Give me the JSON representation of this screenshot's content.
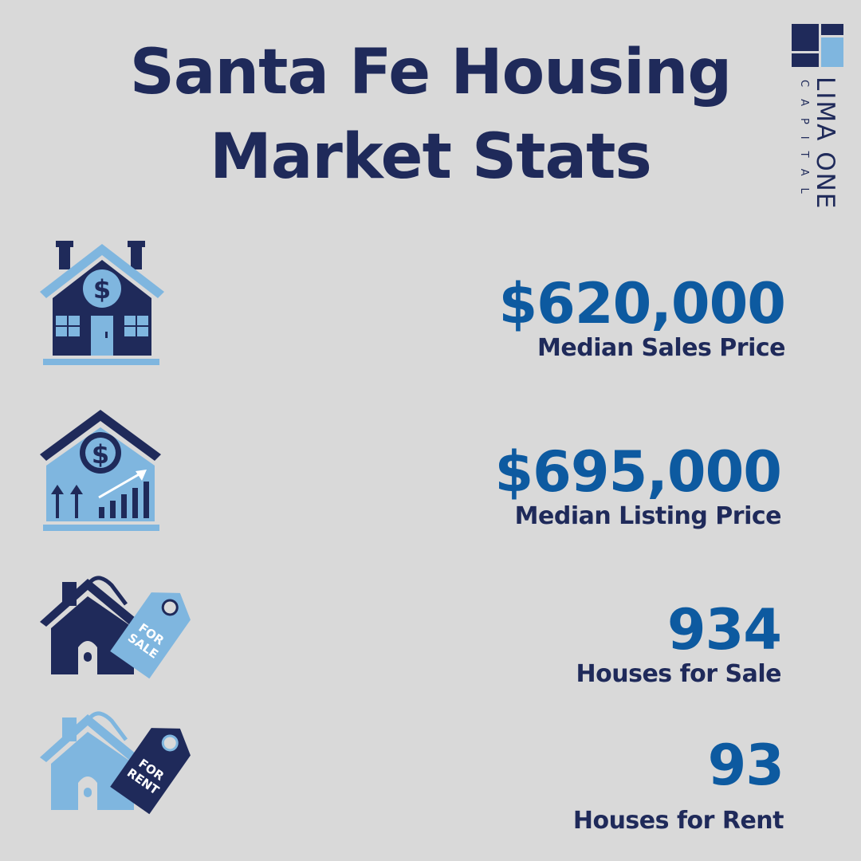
{
  "title": {
    "line1": "Santa Fe Housing",
    "line2": "Market Stats"
  },
  "logo": {
    "brand": "LIMA ONE",
    "sub": "CAPITAL"
  },
  "stats": [
    {
      "value": "$620,000",
      "label": "Median Sales Price",
      "icon": "house-dollar-icon"
    },
    {
      "value": "$695,000",
      "label": "Median Listing Price",
      "icon": "house-growth-chart-icon"
    },
    {
      "value": "934",
      "label": "Houses for Sale",
      "icon": "house-for-sale-tag-icon"
    },
    {
      "value": "93",
      "label": "Houses for Rent",
      "icon": "house-for-rent-tag-icon"
    }
  ],
  "tags": {
    "sale_line1": "FOR",
    "sale_line2": "SALE",
    "rent_line1": "FOR",
    "rent_line2": "RENT"
  },
  "colors": {
    "background": "#d9d9d9",
    "navy": "#1f2a5a",
    "light_blue": "#7fb6df",
    "value_blue": "#0d5aa0"
  }
}
